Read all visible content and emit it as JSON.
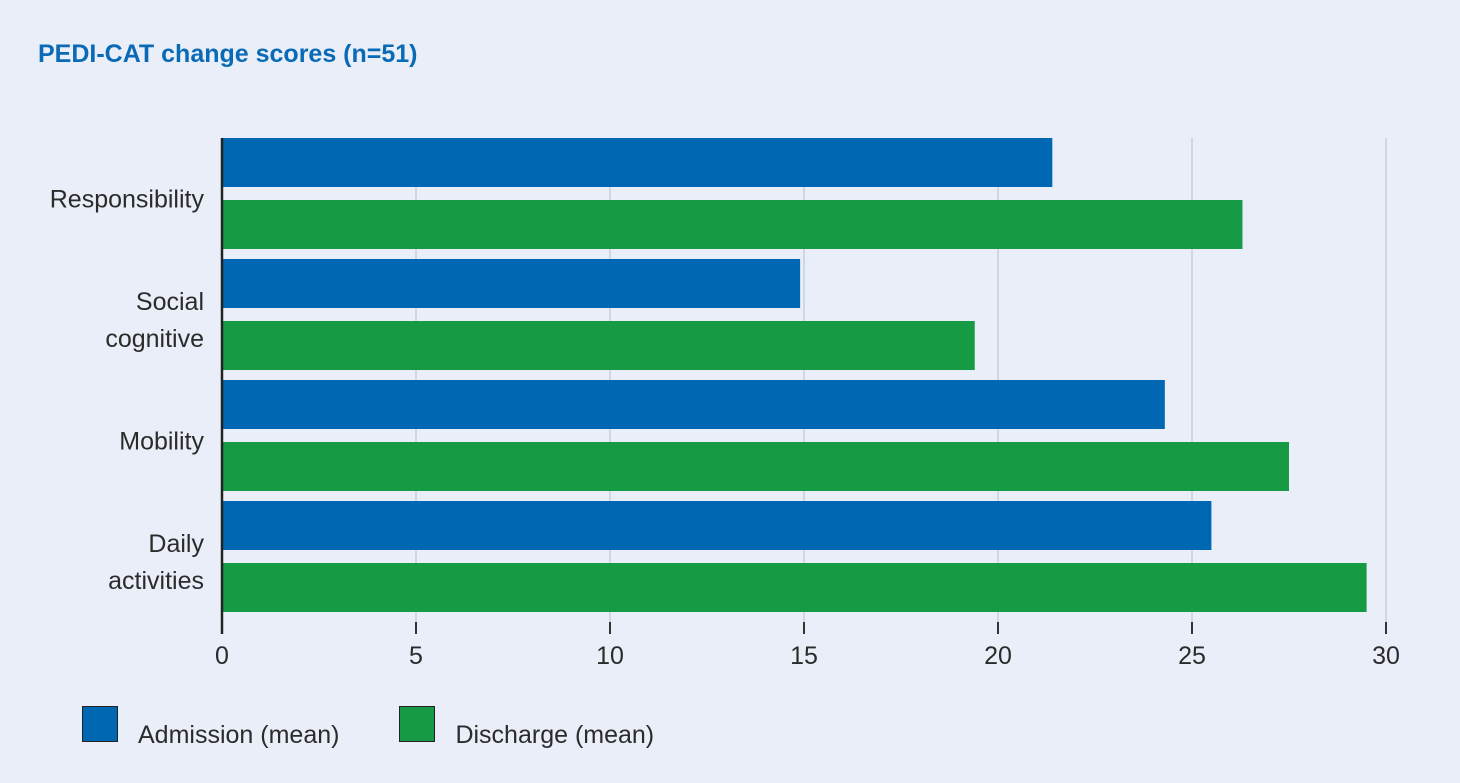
{
  "chart_data": {
    "type": "bar",
    "orientation": "horizontal",
    "title": "PEDI-CAT change scores (n=51)",
    "categories": [
      [
        "Responsibility"
      ],
      [
        "Social",
        "cognitive"
      ],
      [
        "Mobility"
      ],
      [
        "Daily",
        "activities"
      ]
    ],
    "series": [
      {
        "name": "Admission (mean)",
        "color": "#0068b3",
        "values": [
          21.4,
          14.9,
          24.3,
          25.5
        ]
      },
      {
        "name": "Discharge (mean)",
        "color": "#169a43",
        "values": [
          26.3,
          19.4,
          27.5,
          29.5
        ]
      }
    ],
    "xlim": [
      0,
      30
    ],
    "xticks": [
      "0",
      "5",
      "10",
      "15",
      "20",
      "25",
      "30"
    ],
    "grid": true,
    "legend_position": "bottom-left"
  }
}
